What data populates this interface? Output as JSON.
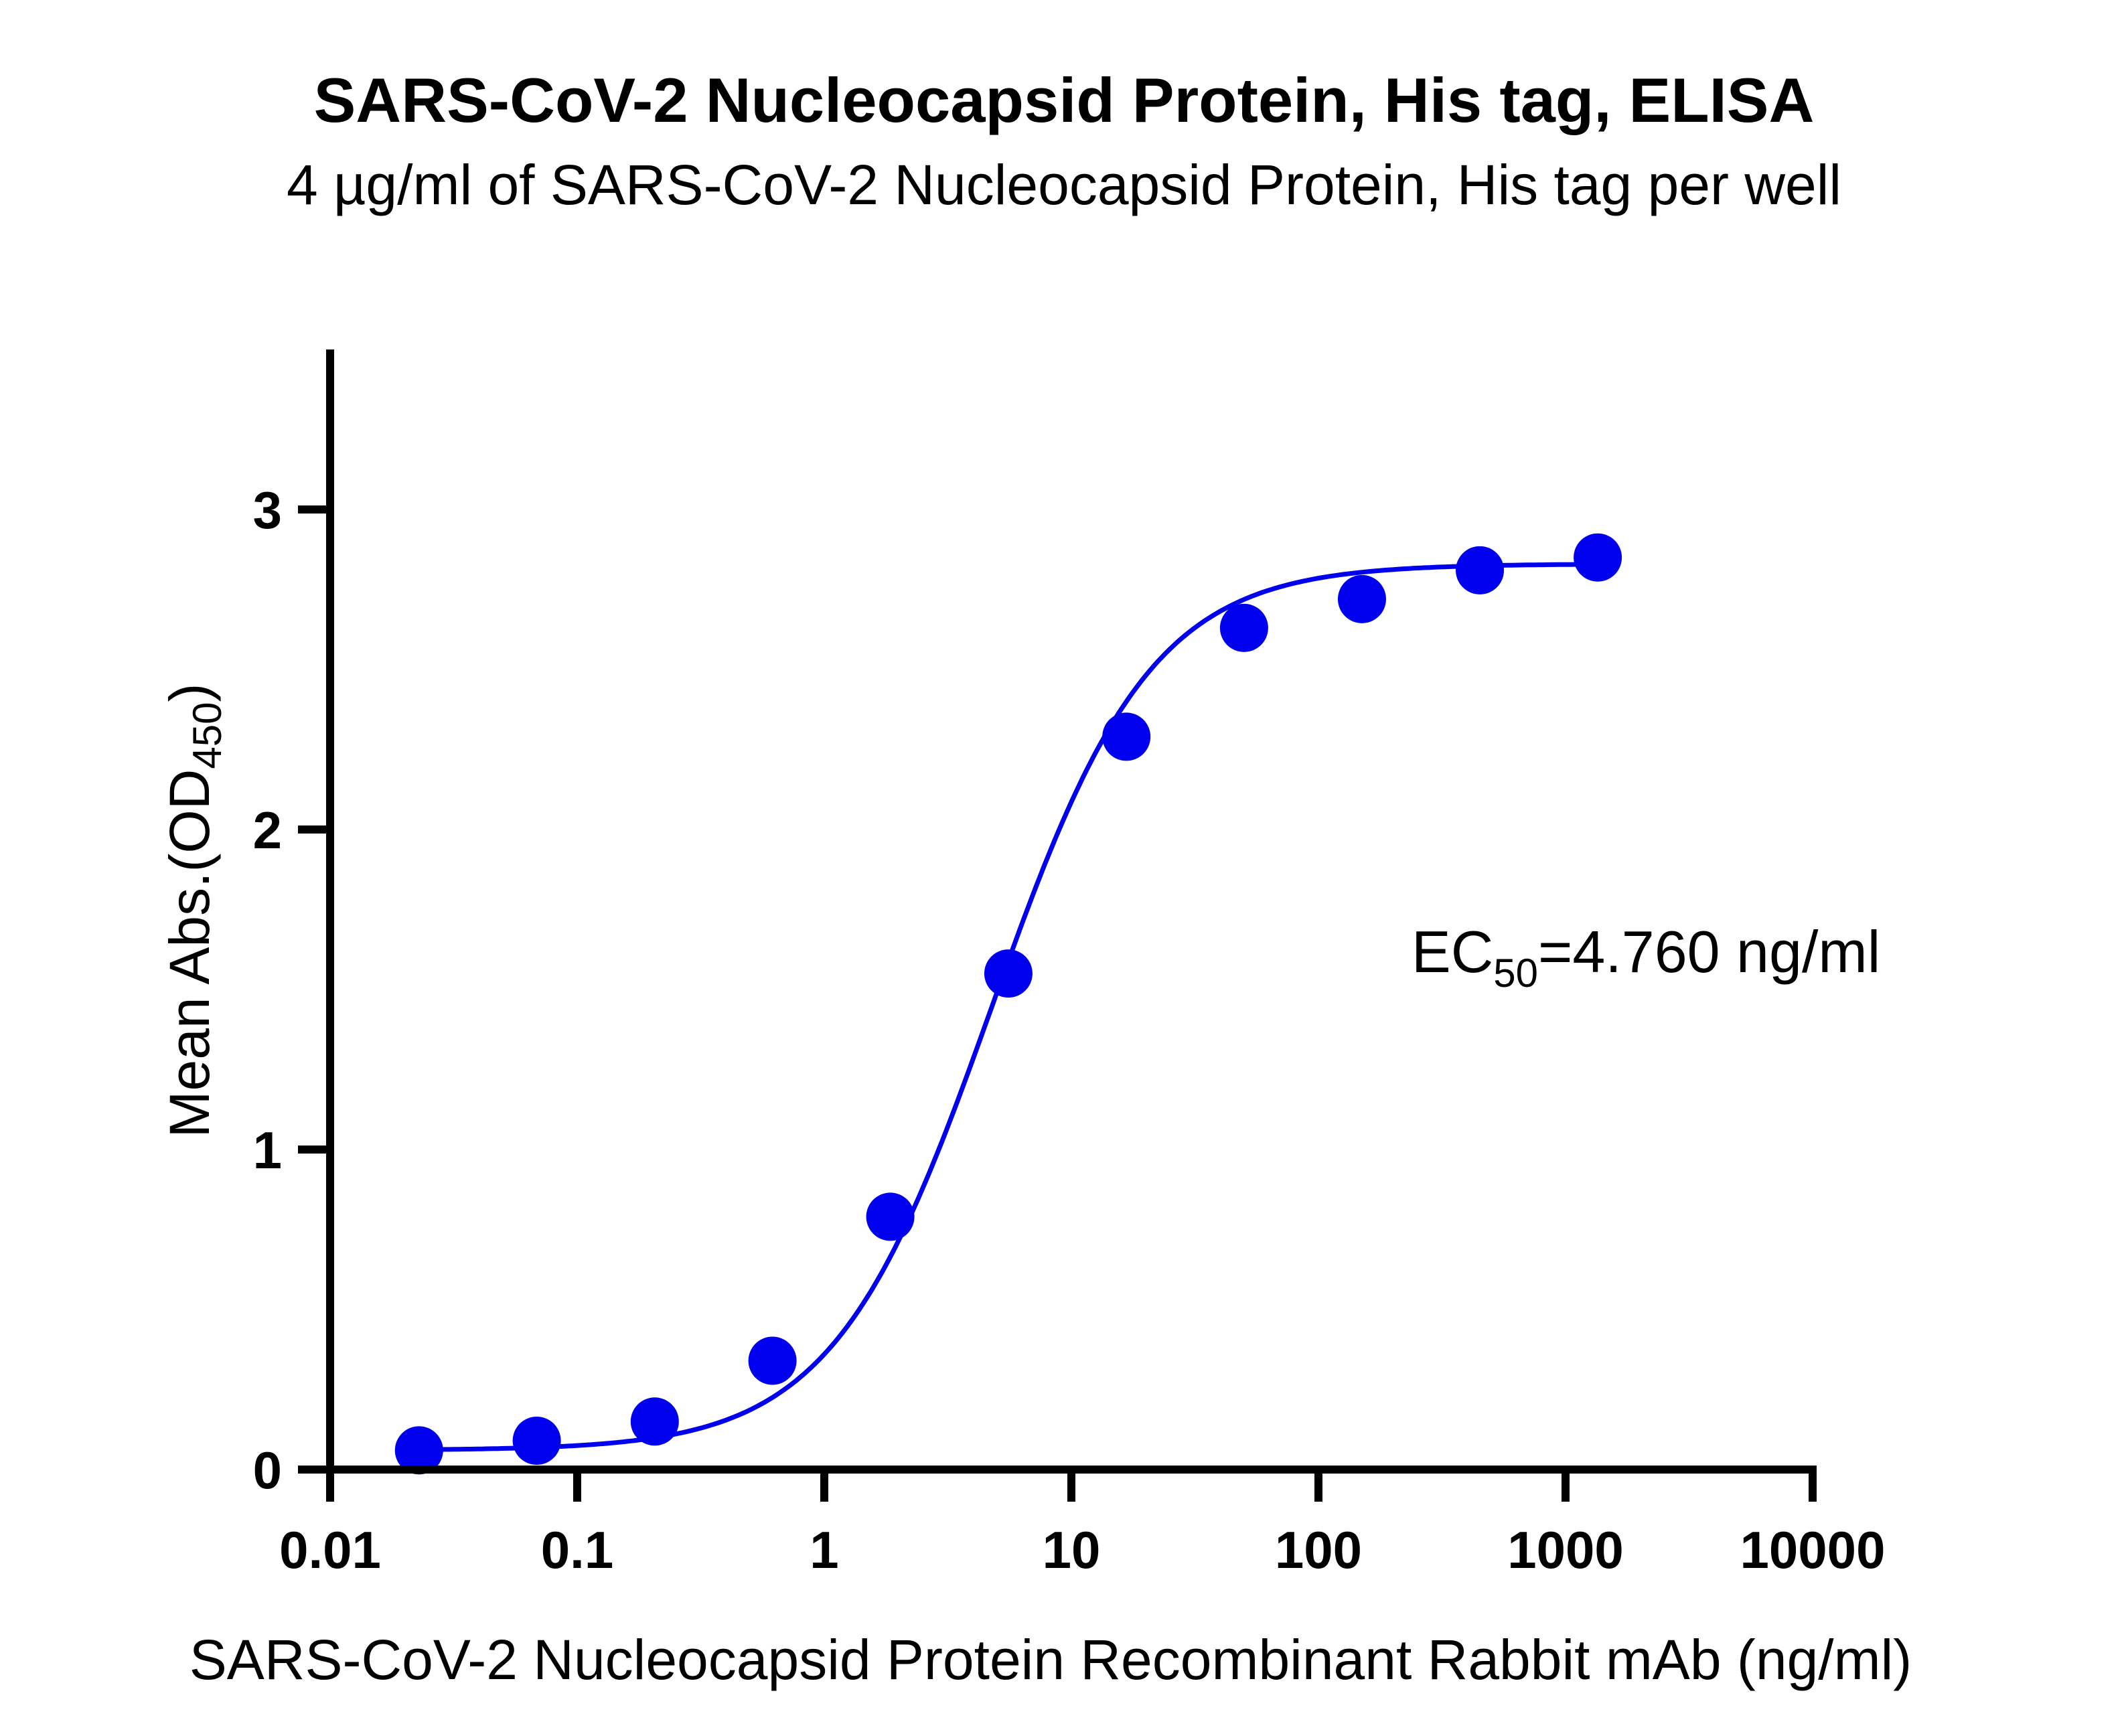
{
  "chart_data": {
    "type": "scatter",
    "title": "SARS-CoV-2 Nucleocapsid Protein, His tag, ELISA",
    "subtitle": "4 µg/ml of SARS-CoV-2 Nucleocapsid Protein, His tag per well",
    "xlabel": "SARS-CoV-2 Nucleocapsid Protein Recombinant Rabbit mAb (ng/ml)",
    "ylabel_main": "Mean Abs.(OD",
    "ylabel_sub": "450",
    "ylabel_end": ")",
    "xscale": "log",
    "xlim": [
      0.01,
      10000
    ],
    "ylim": [
      0,
      3.5
    ],
    "x_ticks": [
      0.01,
      0.1,
      1,
      10,
      100,
      1000,
      10000
    ],
    "x_tick_labels": [
      "0.01",
      "0.1",
      "1",
      "10",
      "100",
      "1000",
      "10000"
    ],
    "y_ticks": [
      0,
      1,
      2,
      3
    ],
    "y_tick_labels": [
      "0",
      "1",
      "2",
      "3"
    ],
    "grid": false,
    "series": [
      {
        "name": "Mean Abs.",
        "color": "#0000ee",
        "x": [
          0.0229,
          0.0686,
          0.206,
          0.617,
          1.85,
          5.56,
          16.7,
          50,
          150,
          450,
          1350
        ],
        "y": [
          0.06,
          0.09,
          0.15,
          0.34,
          0.79,
          1.55,
          2.29,
          2.63,
          2.72,
          2.81,
          2.85
        ]
      }
    ],
    "fit": {
      "model": "4PL",
      "bottom": 0.06,
      "top": 2.83,
      "ec50": 4.76,
      "hill": 1.35,
      "color": "#0000ee"
    },
    "annotation": {
      "prefix": "EC",
      "sub": "50",
      "suffix": "=4.760 ng/ml",
      "position": "right-middle"
    }
  }
}
